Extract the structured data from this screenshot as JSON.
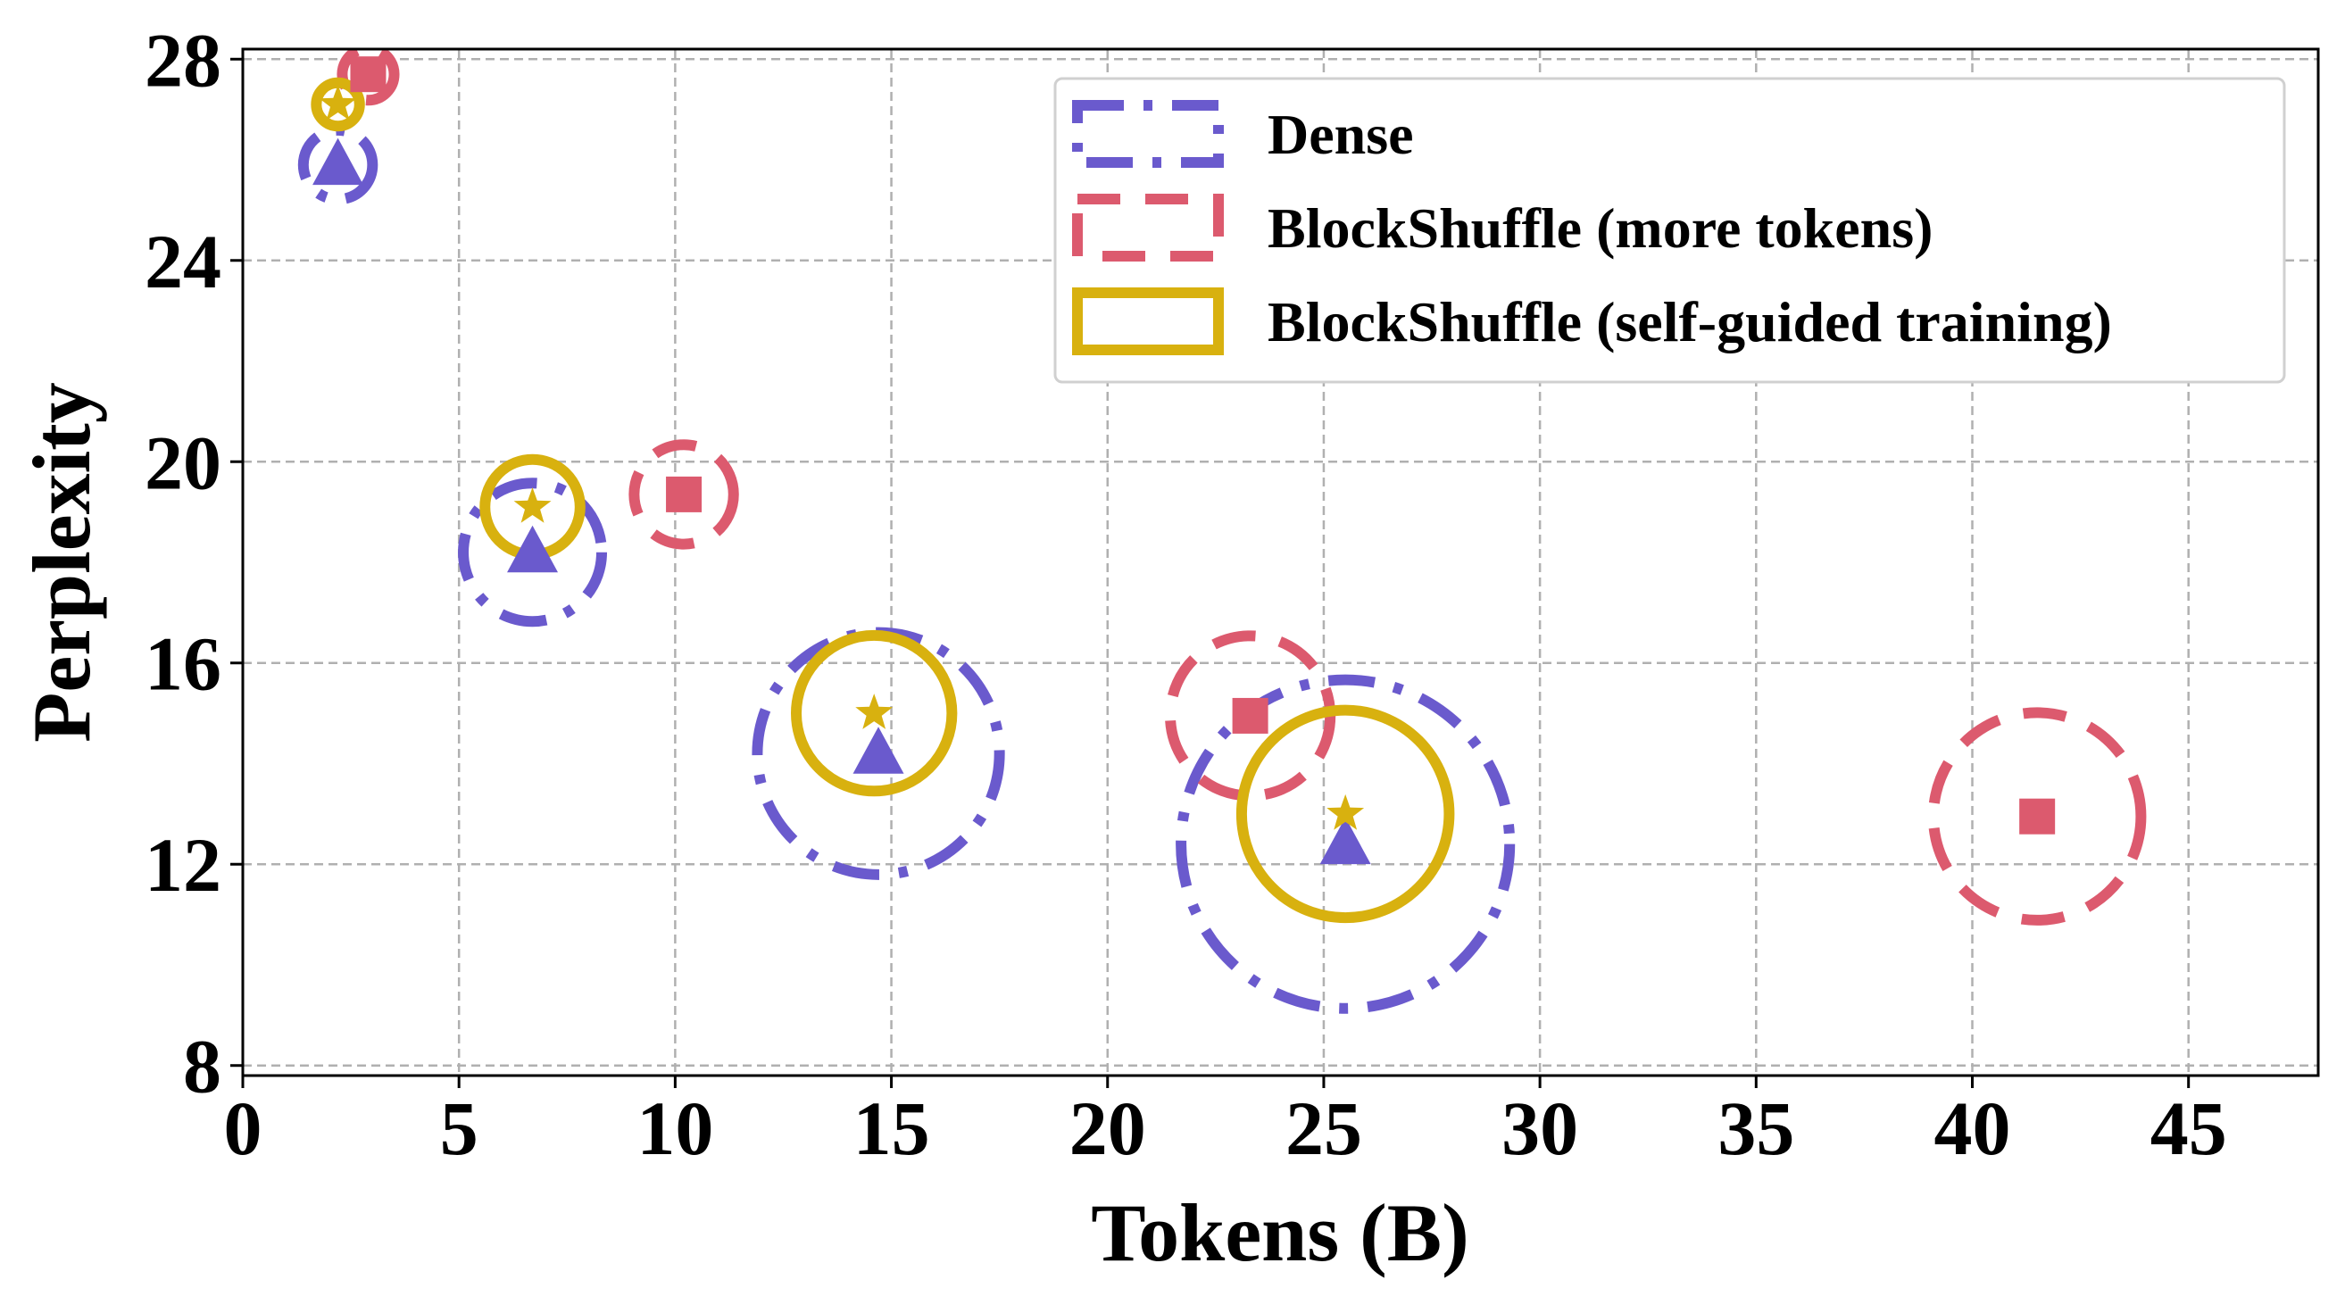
{
  "chart_data": {
    "type": "scatter",
    "title": "",
    "xlabel": "Tokens (B)",
    "ylabel": "Perplexity",
    "xlim": [
      0,
      48
    ],
    "ylim": [
      7.8,
      28.2
    ],
    "x_ticks": [
      0,
      5,
      10,
      15,
      20,
      25,
      30,
      35,
      40,
      45
    ],
    "y_ticks": [
      8,
      12,
      16,
      20,
      24,
      28
    ],
    "grid": true,
    "legend_position": "top-right",
    "circle_radius_unit": "tokens (B)",
    "series": [
      {
        "name": "Dense",
        "color": "#6a5acd",
        "line_style": "dashdot",
        "marker": "triangle",
        "points": [
          {
            "x": 2.2,
            "y": 25.9,
            "r": 0.8
          },
          {
            "x": 6.7,
            "y": 18.2,
            "r": 1.6
          },
          {
            "x": 14.7,
            "y": 14.2,
            "r": 2.8
          },
          {
            "x": 25.5,
            "y": 12.4,
            "r": 3.8
          }
        ]
      },
      {
        "name": "BlockShuffle (more tokens)",
        "color": "#dc5a6e",
        "line_style": "dashed",
        "marker": "square",
        "points": [
          {
            "x": 2.9,
            "y": 27.7,
            "r": 0.6
          },
          {
            "x": 10.2,
            "y": 19.35,
            "r": 1.15
          },
          {
            "x": 23.3,
            "y": 14.95,
            "r": 1.85
          },
          {
            "x": 41.5,
            "y": 12.95,
            "r": 2.4
          }
        ]
      },
      {
        "name": "BlockShuffle (self-guided training)",
        "color": "#d8b10f",
        "line_style": "solid",
        "marker": "star",
        "points": [
          {
            "x": 2.2,
            "y": 27.1,
            "r": 0.5
          },
          {
            "x": 6.7,
            "y": 19.1,
            "r": 1.1
          },
          {
            "x": 14.6,
            "y": 15.0,
            "r": 1.8
          },
          {
            "x": 25.5,
            "y": 13.0,
            "r": 2.4
          }
        ]
      }
    ]
  }
}
